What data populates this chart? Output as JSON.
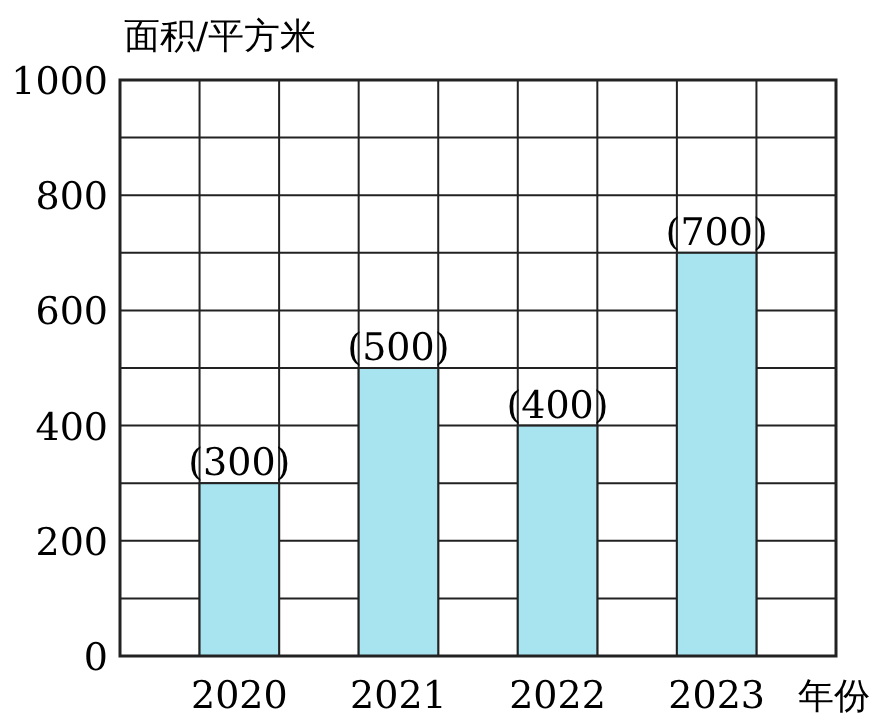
{
  "chart_data": {
    "type": "bar",
    "ylabel": "面积/平方米",
    "xlabel": "年份",
    "categories": [
      "2020",
      "2021",
      "2022",
      "2023"
    ],
    "values": [
      300,
      500,
      400,
      700
    ],
    "value_labels": [
      "(300)",
      "(500)",
      "(400)",
      "(700)"
    ],
    "color": "#a8e4f0",
    "ylim": [
      0,
      1000
    ],
    "yticks": [
      0,
      {
        "value": 100,
        "label": null
      },
      200,
      {
        "value": 300,
        "label": null
      },
      400,
      {
        "value": 500,
        "label": null
      },
      600,
      {
        "value": 700,
        "label": null
      },
      800,
      {
        "value": 900,
        "label": null
      },
      1000
    ],
    "grid": true
  }
}
